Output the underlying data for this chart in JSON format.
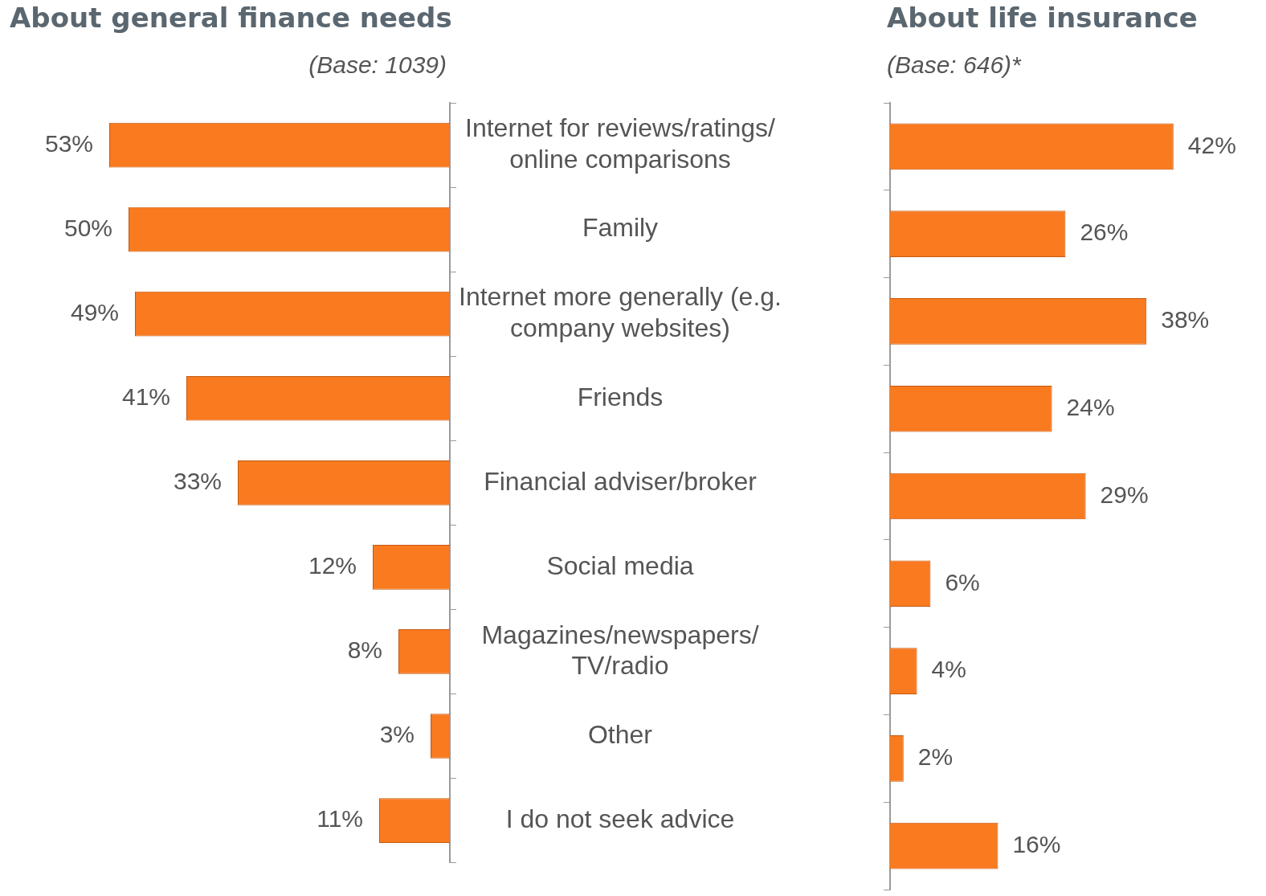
{
  "chart_data": [
    {
      "type": "bar",
      "orientation": "horizontal",
      "title": "About general finance needs",
      "subtitle": "(Base: 1039)",
      "categories": [
        "Internet for reviews/ratings/ online comparisons",
        "Family",
        "Internet more generally (e.g. company websites)",
        "Friends",
        "Financial adviser/broker",
        "Social media",
        "Magazines/newspapers/ TV/radio",
        "Other",
        "I do not seek advice"
      ],
      "values": [
        53,
        50,
        49,
        41,
        33,
        12,
        8,
        3,
        11
      ],
      "value_labels": [
        "53%",
        "50%",
        "49%",
        "41%",
        "33%",
        "12%",
        "8%",
        "3%",
        "11%"
      ],
      "color": "#f97a1f",
      "grid": false,
      "legend": false,
      "tick_labels": "y"
    },
    {
      "type": "bar",
      "orientation": "horizontal",
      "title": "About life insurance",
      "subtitle": "(Base: 646)*",
      "categories": [
        null,
        null,
        null,
        null,
        null,
        null,
        null,
        null,
        null
      ],
      "values": [
        42,
        26,
        38,
        24,
        29,
        6,
        4,
        2,
        16
      ],
      "value_labels": [
        "42%",
        "26%",
        "38%",
        "24%",
        "29%",
        "6%",
        "4%",
        "2%",
        "16%"
      ],
      "color": "#f97a1f",
      "grid": false,
      "legend": false,
      "tick_labels": false
    }
  ]
}
